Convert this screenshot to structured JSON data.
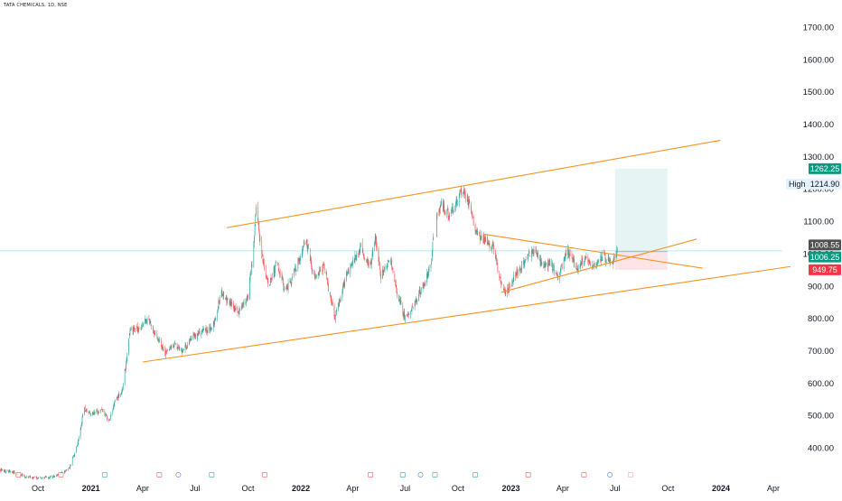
{
  "header": {
    "symbol": "TATA CHEMICALS, 1D, NSE"
  },
  "colors": {
    "up": "#26a69a",
    "down": "#ef5350",
    "trendline": "#f7931e",
    "axis_text": "#131722",
    "current_line": "#b2ebf2",
    "target_zone": "#e0f2f1",
    "stop_zone": "#fde4e6",
    "badge_last": "#4f4f4f",
    "badge_target": "#089981",
    "badge_stop": "#f23645",
    "badge_high_bg": "#e3f2fd"
  },
  "chart_data": {
    "type": "candlestick",
    "y_scale": "linear",
    "ylim": [
      300,
      1760
    ],
    "y_ticks": [
      400,
      500,
      600,
      700,
      800,
      900,
      1000,
      1100,
      1200,
      1300,
      1400,
      1500,
      1600,
      1700
    ],
    "y_tick_labels": [
      "400.00",
      "500.00",
      "600.00",
      "700.00",
      "800.00",
      "900.00",
      "1000.00",
      "1100.00",
      "1200.00",
      "1300.00",
      "1400.00",
      "1500.00",
      "1600.00",
      "1700.00"
    ],
    "x_ticks": [
      {
        "date": "2020-10-01",
        "label": "Oct",
        "bold": false
      },
      {
        "date": "2021-01-01",
        "label": "2021",
        "bold": true
      },
      {
        "date": "2021-04-01",
        "label": "Apr",
        "bold": false
      },
      {
        "date": "2021-07-01",
        "label": "Jul",
        "bold": false
      },
      {
        "date": "2021-10-01",
        "label": "Oct",
        "bold": false
      },
      {
        "date": "2022-01-01",
        "label": "2022",
        "bold": true
      },
      {
        "date": "2022-04-01",
        "label": "Apr",
        "bold": false
      },
      {
        "date": "2022-07-01",
        "label": "Jul",
        "bold": false
      },
      {
        "date": "2022-10-01",
        "label": "Oct",
        "bold": false
      },
      {
        "date": "2023-01-01",
        "label": "2023",
        "bold": true
      },
      {
        "date": "2023-04-01",
        "label": "Apr",
        "bold": false
      },
      {
        "date": "2023-07-01",
        "label": "Jul",
        "bold": false
      },
      {
        "date": "2023-10-01",
        "label": "Oct",
        "bold": false
      },
      {
        "date": "2024-01-01",
        "label": "2024",
        "bold": true
      },
      {
        "date": "2024-04-01",
        "label": "Apr",
        "bold": false
      }
    ],
    "price_path": [
      [
        "2020-07-20",
        335
      ],
      [
        "2020-08-15",
        325
      ],
      [
        "2020-09-10",
        310
      ],
      [
        "2020-10-05",
        305
      ],
      [
        "2020-11-05",
        315
      ],
      [
        "2020-11-25",
        335
      ],
      [
        "2020-12-10",
        420
      ],
      [
        "2020-12-20",
        520
      ],
      [
        "2021-01-05",
        505
      ],
      [
        "2021-01-20",
        520
      ],
      [
        "2021-02-01",
        480
      ],
      [
        "2021-02-12",
        545
      ],
      [
        "2021-02-25",
        580
      ],
      [
        "2021-03-10",
        760
      ],
      [
        "2021-03-25",
        770
      ],
      [
        "2021-04-10",
        800
      ],
      [
        "2021-04-25",
        745
      ],
      [
        "2021-05-10",
        690
      ],
      [
        "2021-05-25",
        720
      ],
      [
        "2021-06-10",
        700
      ],
      [
        "2021-06-25",
        740
      ],
      [
        "2021-07-15",
        760
      ],
      [
        "2021-08-01",
        770
      ],
      [
        "2021-08-15",
        880
      ],
      [
        "2021-09-01",
        840
      ],
      [
        "2021-09-15",
        820
      ],
      [
        "2021-10-01",
        870
      ],
      [
        "2021-10-10",
        1000
      ],
      [
        "2021-10-15",
        1150
      ],
      [
        "2021-10-25",
        1000
      ],
      [
        "2021-11-05",
        900
      ],
      [
        "2021-11-20",
        970
      ],
      [
        "2021-12-05",
        880
      ],
      [
        "2021-12-20",
        940
      ],
      [
        "2022-01-10",
        1040
      ],
      [
        "2022-01-25",
        920
      ],
      [
        "2022-02-10",
        960
      ],
      [
        "2022-03-01",
        800
      ],
      [
        "2022-03-20",
        930
      ],
      [
        "2022-04-15",
        1020
      ],
      [
        "2022-05-01",
        950
      ],
      [
        "2022-05-10",
        1060
      ],
      [
        "2022-05-20",
        930
      ],
      [
        "2022-06-05",
        980
      ],
      [
        "2022-06-20",
        860
      ],
      [
        "2022-07-01",
        800
      ],
      [
        "2022-07-15",
        840
      ],
      [
        "2022-08-01",
        900
      ],
      [
        "2022-08-15",
        960
      ],
      [
        "2022-08-20",
        1090
      ],
      [
        "2022-09-01",
        1150
      ],
      [
        "2022-09-15",
        1120
      ],
      [
        "2022-10-01",
        1170
      ],
      [
        "2022-10-10",
        1200
      ],
      [
        "2022-10-20",
        1160
      ],
      [
        "2022-11-01",
        1060
      ],
      [
        "2022-11-20",
        1040
      ],
      [
        "2022-12-01",
        1020
      ],
      [
        "2022-12-15",
        900
      ],
      [
        "2022-12-25",
        880
      ],
      [
        "2023-01-10",
        940
      ],
      [
        "2023-01-25",
        980
      ],
      [
        "2023-02-10",
        1010
      ],
      [
        "2023-02-25",
        960
      ],
      [
        "2023-03-10",
        970
      ],
      [
        "2023-03-25",
        930
      ],
      [
        "2023-04-10",
        1010
      ],
      [
        "2023-04-25",
        950
      ],
      [
        "2023-05-10",
        990
      ],
      [
        "2023-05-25",
        960
      ],
      [
        "2023-06-10",
        990
      ],
      [
        "2023-06-25",
        975
      ],
      [
        "2023-07-05",
        1008
      ]
    ],
    "gaps": [
      [
        "2022-08-20",
        "2022-08-25"
      ]
    ],
    "trendlines": [
      {
        "name": "upper channel",
        "from": [
          "2021-08-25",
          1080
        ],
        "to": [
          "2023-12-31",
          1350
        ]
      },
      {
        "name": "lower channel",
        "from": [
          "2021-04-01",
          665
        ],
        "to": [
          "2024-05-01",
          960
        ]
      },
      {
        "name": "triangle top",
        "from": [
          "2022-11-15",
          1060
        ],
        "to": [
          "2023-11-30",
          955
        ]
      },
      {
        "name": "triangle bottom",
        "from": [
          "2022-12-15",
          880
        ],
        "to": [
          "2023-11-20",
          1045
        ]
      }
    ],
    "position_tool": {
      "start": "2023-07-01",
      "end": "2023-09-30",
      "entry": 1006.25,
      "target": 1262.25,
      "stop": 949.75
    },
    "current_price": 1008.55,
    "price_badges": [
      {
        "value": 1262.25,
        "label": "1262.25",
        "kind": "target"
      },
      {
        "value": 1214.9,
        "label": "1214.90",
        "kind": "high",
        "tag": "High"
      },
      {
        "value": 1008.55,
        "label": "1008.55",
        "kind": "last"
      },
      {
        "value": 1006.25,
        "label": "1006.25",
        "kind": "entry"
      },
      {
        "value": 949.75,
        "label": "949.75",
        "kind": "stop"
      }
    ],
    "event_markers": [
      {
        "date": "2020-07-20",
        "kind": "E"
      },
      {
        "date": "2020-08-28",
        "kind": "E"
      },
      {
        "date": "2020-11-10",
        "kind": "E"
      },
      {
        "date": "2021-01-25",
        "kind": "S"
      },
      {
        "date": "2021-04-30",
        "kind": "E"
      },
      {
        "date": "2021-06-02",
        "kind": "D"
      },
      {
        "date": "2021-07-30",
        "kind": "S"
      },
      {
        "date": "2021-10-30",
        "kind": "E"
      },
      {
        "date": "2022-05-02",
        "kind": "E"
      },
      {
        "date": "2022-06-27",
        "kind": "S"
      },
      {
        "date": "2022-07-28",
        "kind": "D"
      },
      {
        "date": "2022-08-22",
        "kind": "S"
      },
      {
        "date": "2022-10-31",
        "kind": "S"
      },
      {
        "date": "2023-01-31",
        "kind": "E"
      },
      {
        "date": "2023-05-08",
        "kind": "E"
      },
      {
        "date": "2023-06-22",
        "kind": "D"
      },
      {
        "date": "2023-07-28",
        "kind": "E-future"
      }
    ]
  }
}
